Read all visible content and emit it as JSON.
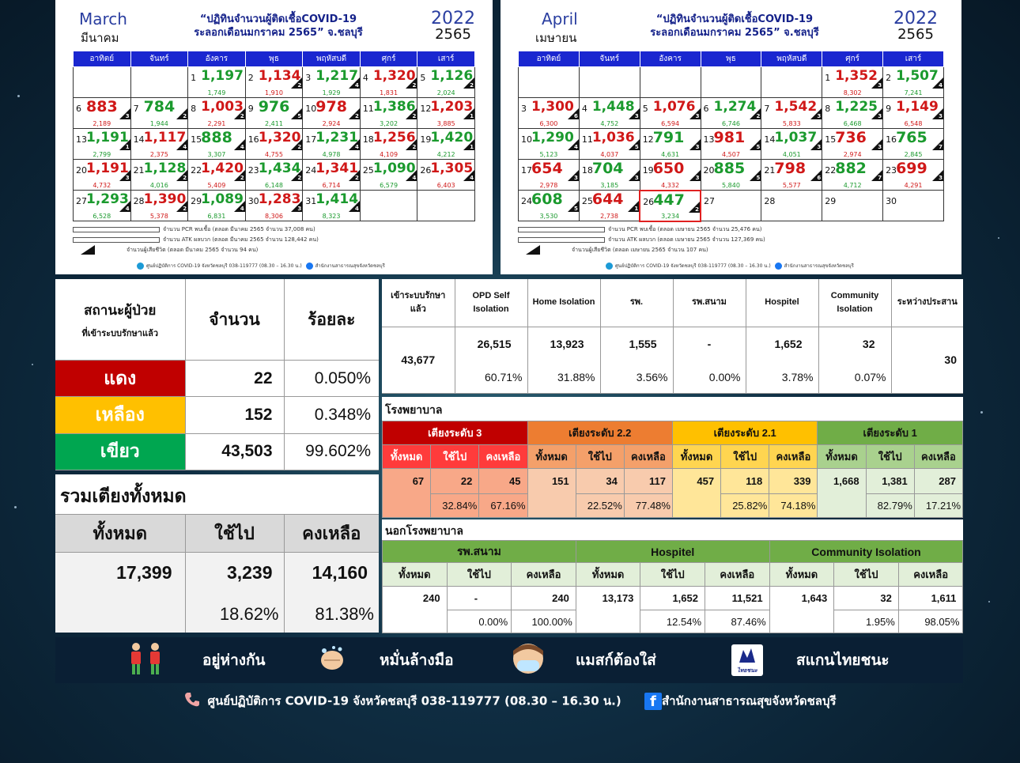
{
  "march": {
    "month_en": "March",
    "month_th": "มีนาคม",
    "title1": "“ปฏิทินจำนวนผู้ติดเชื้อCOVID-19",
    "title2": "ระลอกเดือนมกราคม 2565” จ.ชลบุรี",
    "year": "2022",
    "year_th": "2565",
    "weekdays": [
      "อาทิตย์",
      "จันทร์",
      "อังคาร",
      "พุธ",
      "พฤหัสบดี",
      "ศุกร์",
      "เสาร์"
    ],
    "rows": [
      [
        null,
        null,
        {
          "d": "1",
          "v": "1,197",
          "s": "1,749"
        },
        {
          "d": "2",
          "v": "1,134",
          "s": "1,910",
          "t": "2"
        },
        {
          "d": "3",
          "v": "1,217",
          "s": "1,929",
          "t": "4"
        },
        {
          "d": "4",
          "v": "1,320",
          "s": "1,831",
          "t": "2"
        },
        {
          "d": "5",
          "v": "1,126",
          "s": "2,024",
          "t": "2"
        }
      ],
      [
        {
          "d": "6",
          "v": "883",
          "s": "2,189",
          "t": "3"
        },
        {
          "d": "7",
          "v": "784",
          "s": "1,944",
          "t": "2"
        },
        {
          "d": "8",
          "v": "1,003",
          "s": "2,291",
          "t": "2"
        },
        {
          "d": "9",
          "v": "976",
          "s": "2,411",
          "t": "5"
        },
        {
          "d": "10",
          "v": "978",
          "s": "2,924",
          "t": "2"
        },
        {
          "d": "11",
          "v": "1,386",
          "s": "3,202",
          "t": "2"
        },
        {
          "d": "12",
          "v": "1,203",
          "s": "3,885",
          "t": "1"
        }
      ],
      [
        {
          "d": "13",
          "v": "1,191",
          "s": "2,799",
          "t": "1"
        },
        {
          "d": "14",
          "v": "1,117",
          "s": "2,375",
          "t": "4"
        },
        {
          "d": "15",
          "v": "888",
          "s": "3,307",
          "t": "4"
        },
        {
          "d": "16",
          "v": "1,320",
          "s": "4,755",
          "t": "2"
        },
        {
          "d": "17",
          "v": "1,231",
          "s": "4,978",
          "t": "4"
        },
        {
          "d": "18",
          "v": "1,256",
          "s": "4,109",
          "t": "2"
        },
        {
          "d": "19",
          "v": "1,420",
          "s": "4,212",
          "t": "1"
        }
      ],
      [
        {
          "d": "20",
          "v": "1,191",
          "s": "4,732",
          "t": "3"
        },
        {
          "d": "21",
          "v": "1,128",
          "s": "4,016",
          "t": "2"
        },
        {
          "d": "22",
          "v": "1,420",
          "s": "5,409",
          "t": "2"
        },
        {
          "d": "23",
          "v": "1,434",
          "s": "6,148",
          "t": "2"
        },
        {
          "d": "24",
          "v": "1,341",
          "s": "6,714",
          "t": "2"
        },
        {
          "d": "25",
          "v": "1,090",
          "s": "6,579",
          "t": "4"
        },
        {
          "d": "26",
          "v": "1,305",
          "s": "6,403",
          "t": "4"
        }
      ],
      [
        {
          "d": "27",
          "v": "1,293",
          "s": "6,528",
          "t": "4"
        },
        {
          "d": "28",
          "v": "1,390",
          "s": "5,378",
          "t": "2"
        },
        {
          "d": "29",
          "v": "1,089",
          "s": "6,831",
          "t": "4"
        },
        {
          "d": "30",
          "v": "1,283",
          "s": "8,306",
          "t": "3"
        },
        {
          "d": "31",
          "v": "1,414",
          "s": "8,323",
          "t": "4"
        },
        null,
        null
      ]
    ],
    "legend1": "จำนวน PCR พบเชื้อ (ตลอด มีนาคม 2565 จำนวน 37,008 คน)",
    "legend2": "จำนวน ATK ผลบวก (ตลอด มีนาคม 2565 จำนวน 128,442 คน)",
    "legend3": "จำนวนผู้เสียชีวิต (ตลอด มีนาคม 2565 จำนวน 94 คน)",
    "foot1": "ศูนย์ปฏิบัติการ COVID-19 จังหวัดชลบุรี 038-119777 (08.30 – 16.30 น.)",
    "foot2": "สำนักงานสาธารณสุขจังหวัดชลบุรี"
  },
  "april": {
    "month_en": "April",
    "month_th": "เมษายน",
    "title1": "“ปฏิทินจำนวนผู้ติดเชื้อCOVID-19",
    "title2": "ระลอกเดือนมกราคม 2565” จ.ชลบุรี",
    "year": "2022",
    "year_th": "2565",
    "weekdays": [
      "อาทิตย์",
      "จันทร์",
      "อังคาร",
      "พุธ",
      "พฤหัสบดี",
      "ศุกร์",
      "เสาร์"
    ],
    "rows": [
      [
        null,
        null,
        null,
        null,
        null,
        {
          "d": "1",
          "v": "1,352",
          "s": "8,302",
          "t": "3"
        },
        {
          "d": "2",
          "v": "1,507",
          "s": "7,241",
          "t": "4"
        }
      ],
      [
        {
          "d": "3",
          "v": "1,300",
          "s": "6,300",
          "t": "6"
        },
        {
          "d": "4",
          "v": "1,448",
          "s": "4,752",
          "t": "3"
        },
        {
          "d": "5",
          "v": "1,076",
          "s": "6,594",
          "t": "3"
        },
        {
          "d": "6",
          "v": "1,274",
          "s": "6,746",
          "t": "2"
        },
        {
          "d": "7",
          "v": "1,542",
          "s": "5,833",
          "t": "3"
        },
        {
          "d": "8",
          "v": "1,225",
          "s": "6,468",
          "t": "3"
        },
        {
          "d": "9",
          "v": "1,149",
          "s": "6,548",
          "t": "3"
        }
      ],
      [
        {
          "d": "10",
          "v": "1,290",
          "s": "5,123",
          "t": "4"
        },
        {
          "d": "11",
          "v": "1,036",
          "s": "4,037",
          "t": "5"
        },
        {
          "d": "12",
          "v": "791",
          "s": "4,631",
          "t": "3"
        },
        {
          "d": "13",
          "v": "981",
          "s": "4,507",
          "t": "5"
        },
        {
          "d": "14",
          "v": "1,037",
          "s": "4,051",
          "t": "3"
        },
        {
          "d": "15",
          "v": "736",
          "s": "2,974",
          "t": "3"
        },
        {
          "d": "16",
          "v": "765",
          "s": "2,845",
          "t": "7"
        }
      ],
      [
        {
          "d": "17",
          "v": "654",
          "s": "2,978",
          "t": "3"
        },
        {
          "d": "18",
          "v": "704",
          "s": "3,185",
          "t": "3"
        },
        {
          "d": "19",
          "v": "650",
          "s": "4,332",
          "t": "3"
        },
        {
          "d": "20",
          "v": "885",
          "s": "5,840",
          "t": "5"
        },
        {
          "d": "21",
          "v": "798",
          "s": "5,577",
          "t": "6"
        },
        {
          "d": "22",
          "v": "882",
          "s": "4,712",
          "t": "7"
        },
        {
          "d": "23",
          "v": "699",
          "s": "4,291",
          "t": "3"
        }
      ],
      [
        {
          "d": "24",
          "v": "608",
          "s": "3,530",
          "t": "5"
        },
        {
          "d": "25",
          "v": "644",
          "s": "2,738",
          "t": "1"
        },
        {
          "d": "26",
          "v": "447",
          "s": "3,234",
          "t": "2",
          "hl": true
        },
        {
          "d": "27"
        },
        {
          "d": "28"
        },
        {
          "d": "29"
        },
        {
          "d": "30"
        }
      ]
    ],
    "legend1": "จำนวน PCR พบเชื้อ (ตลอด เมษายน 2565 จำนวน 25,476 คน)",
    "legend2": "จำนวน ATK ผลบวก (ตลอด เมษายน 2565 จำนวน 127,369 คน)",
    "legend3": "จำนวนผู้เสียชีวิต (ตลอด เมษายน 2565 จำนวน 107 คน)",
    "foot1": "ศูนย์ปฏิบัติการ COVID-19 จังหวัดชลบุรี 038-119777 (08.30 – 16.30 น.)",
    "foot2": "สำนักงานสาธารณสุขจังหวัดชลบุรี"
  },
  "status": {
    "h1": "สถานะผู้ป่วย",
    "h1b": "ที่เข้าระบบรักษาแล้ว",
    "h2": "จำนวน",
    "h3": "ร้อยละ",
    "rows": [
      {
        "label": "แดง",
        "n": "22",
        "p": "0.050%",
        "color": "#c00000"
      },
      {
        "label": "เหลือง",
        "n": "152",
        "p": "0.348%",
        "color": "#ffc000"
      },
      {
        "label": "เขียว",
        "n": "43,503",
        "p": "99.602%",
        "color": "#00a650"
      }
    ]
  },
  "beds": {
    "title": "รวมเตียงทั้งหมด",
    "h1": "ทั้งหมด",
    "h2": "ใช้ไป",
    "h3": "คงเหลือ",
    "total": "17,399",
    "used": "3,239",
    "left": "14,160",
    "used_pct": "18.62%",
    "left_pct": "81.38%"
  },
  "system": {
    "headers": [
      "เข้าระบบรักษาแล้ว",
      "OPD Self Isolation",
      "Home Isolation",
      "รพ.",
      "รพ.สนาม",
      "Hospitel",
      "Community Isolation",
      "ระหว่างประสาน"
    ],
    "total": "43,677",
    "values": [
      "26,515",
      "13,923",
      "1,555",
      "-",
      "1,652",
      "32"
    ],
    "pcts": [
      "60.71%",
      "31.88%",
      "3.56%",
      "0.00%",
      "3.78%",
      "0.07%"
    ],
    "pending": "30"
  },
  "hospital": {
    "title": "โรงพยาบาล",
    "sub": [
      "ทั้งหมด",
      "ใช้ไป",
      "คงเหลือ"
    ],
    "groups": [
      {
        "name": "เตียงระดับ 3",
        "color": "#c00000",
        "light": "#ff3b3b",
        "pale": "#f8a888",
        "total": "67",
        "used": "22",
        "left": "45",
        "up": "32.84%",
        "lp": "67.16%"
      },
      {
        "name": "เตียงระดับ 2.2",
        "color": "#ed7d31",
        "light": "#f4a06a",
        "pale": "#f8cbad",
        "total": "151",
        "used": "34",
        "left": "117",
        "up": "22.52%",
        "lp": "77.48%"
      },
      {
        "name": "เตียงระดับ 2.1",
        "color": "#ffc000",
        "light": "#ffd550",
        "pale": "#ffe699",
        "total": "457",
        "used": "118",
        "left": "339",
        "up": "25.82%",
        "lp": "74.18%"
      },
      {
        "name": "เตียงระดับ 1",
        "color": "#70ad47",
        "light": "#a9d18e",
        "pale": "#e2efd9",
        "total": "1,668",
        "used": "1,381",
        "left": "287",
        "up": "82.79%",
        "lp": "17.21%"
      }
    ]
  },
  "outside": {
    "title": "นอกโรงพยาบาล",
    "sub": [
      "ทั้งหมด",
      "ใช้ไป",
      "คงเหลือ"
    ],
    "groups": [
      {
        "name": "รพ.สนาม",
        "total": "240",
        "used": "-",
        "left": "240",
        "up": "0.00%",
        "lp": "100.00%"
      },
      {
        "name": "Hospitel",
        "total": "13,173",
        "used": "1,652",
        "left": "11,521",
        "up": "12.54%",
        "lp": "87.46%"
      },
      {
        "name": "Community Isolation",
        "total": "1,643",
        "used": "32",
        "left": "1,611",
        "up": "1.95%",
        "lp": "98.05%"
      }
    ]
  },
  "band": {
    "i1": "อยู่ห่างกัน",
    "i2": "หมั่นล้างมือ",
    "i3": "แมสก์ต้องใส่",
    "i4": "สแกนไทยชนะ",
    "logo": "ไทยชนะ"
  },
  "footer": {
    "call": "ศูนย์ปฏิบัติการ COVID-19 จังหวัดชลบุรี 038-119777 (08.30 – 16.30 น.)",
    "fb": "สำนักงานสาธารณสุขจังหวัดชลบุรี"
  }
}
